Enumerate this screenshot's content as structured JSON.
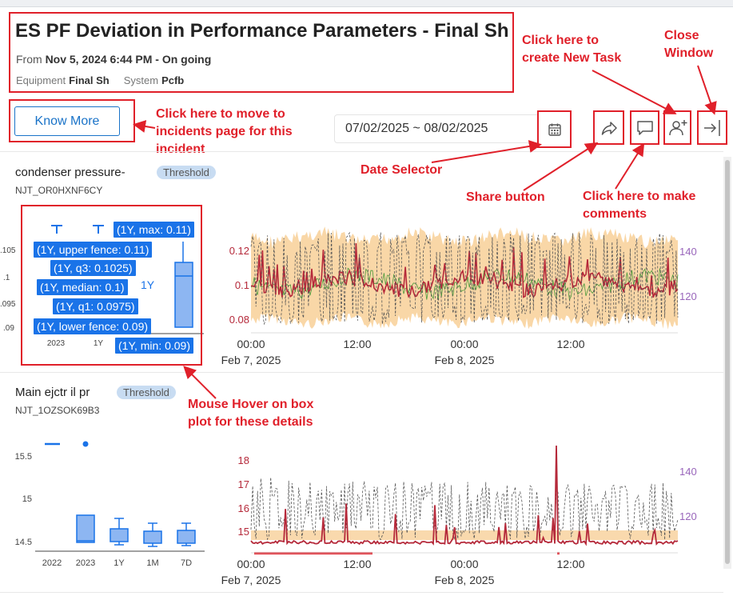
{
  "header": {
    "title": "ES PF Deviation in Performance Parameters - Final Sh",
    "from_label": "From",
    "from_value": "Nov 5, 2024 6:44 PM - On going",
    "equipment_label": "Equipment",
    "equipment_value": "Final Sh",
    "system_label": "System",
    "system_value": "Pcfb"
  },
  "actions": {
    "know_more": "Know More",
    "date_range": "07/02/2025 ~ 08/02/2025"
  },
  "icons": [
    "calendar-icon",
    "share-icon",
    "comment-icon",
    "add-user-icon",
    "close-window-icon"
  ],
  "annotations": {
    "create_task": [
      "Click here to",
      "create New Task"
    ],
    "close_window": [
      "Close",
      "Window"
    ],
    "move_incidents": [
      "Click here to move to",
      "incidents page for this",
      "incident"
    ],
    "date_selector": "Date Selector",
    "share_button": "Share button",
    "comments": [
      "Click here to make",
      "comments"
    ],
    "mouse_hover": [
      "Mouse Hover on box",
      "plot for these details"
    ]
  },
  "colors": {
    "annotation_red": "#e0202a",
    "primary_blue": "#1a73c8",
    "tooltip_blue": "#1a73e8",
    "badge_bg": "#c8dcf2",
    "series_red": "#b5293a",
    "band_orange": "#f7c98a",
    "right_axis_purple": "#9966bb"
  },
  "cards": [
    {
      "name": "condenser pressure-",
      "badge": "Threshold",
      "id": "NJT_OR0HXNF6CY",
      "left_axis_partial": [
        ".105",
        ".1",
        ".095",
        ".09"
      ],
      "box_x_labels": [
        "2023",
        "1Y"
      ],
      "tooltips": [
        "(1Y, max: 0.11)",
        "(1Y, upper fence: 0.11)",
        "(1Y, q3: 0.1025)",
        "(1Y, median: 0.1)",
        "(1Y, q1: 0.0975)",
        "(1Y, lower fence: 0.09)",
        "(1Y, min: 0.09)"
      ],
      "hover_tag": "1Y",
      "ts_left_ticks": [
        "0.12",
        "0.1",
        "0.08"
      ],
      "ts_right_ticks": [
        "140",
        "120"
      ],
      "ts_x_ticks": [
        "00:00",
        "12:00",
        "00:00",
        "12:00"
      ],
      "ts_dates": [
        "Feb 7, 2025",
        "Feb 8, 2025"
      ]
    },
    {
      "name": "Main ejctr il pr",
      "badge": "Threshold",
      "id": "NJT_1OZSOK69B3",
      "box_y_ticks": [
        "15.5",
        "15",
        "14.5"
      ],
      "box_x_labels": [
        "2022",
        "2023",
        "1Y",
        "1M",
        "7D"
      ],
      "ts_left_ticks": [
        "18",
        "17",
        "16",
        "15"
      ],
      "ts_right_ticks": [
        "140",
        "120"
      ],
      "ts_x_ticks": [
        "00:00",
        "12:00",
        "00:00",
        "12:00"
      ],
      "ts_dates": [
        "Feb 7, 2025",
        "Feb 8, 2025"
      ]
    }
  ]
}
